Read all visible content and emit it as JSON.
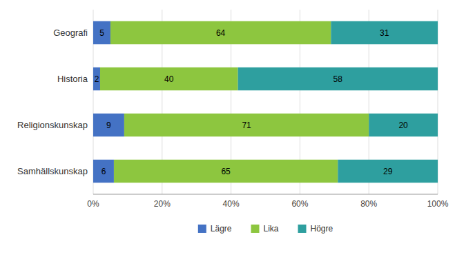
{
  "chart_data": {
    "type": "bar",
    "orientation": "horizontal",
    "stacked": true,
    "categories": [
      "Geografi",
      "Historia",
      "Religionskunskap",
      "Samhällskunskap"
    ],
    "series": [
      {
        "name": "Lägre",
        "color": "#4472C4",
        "values": [
          5,
          2,
          9,
          6
        ]
      },
      {
        "name": "Lika",
        "color": "#8DC63F",
        "values": [
          64,
          40,
          71,
          65
        ]
      },
      {
        "name": "Högre",
        "color": "#2E9F9F",
        "values": [
          31,
          58,
          20,
          29
        ]
      }
    ],
    "xlim": [
      0,
      100
    ],
    "xticks": [
      {
        "value": 0,
        "label": "0%"
      },
      {
        "value": 20,
        "label": "20%"
      },
      {
        "value": 40,
        "label": "40%"
      },
      {
        "value": 60,
        "label": "60%"
      },
      {
        "value": 80,
        "label": "80%"
      },
      {
        "value": 100,
        "label": "100%"
      }
    ],
    "grid": true,
    "data_labels": true,
    "legend": "bottom"
  }
}
